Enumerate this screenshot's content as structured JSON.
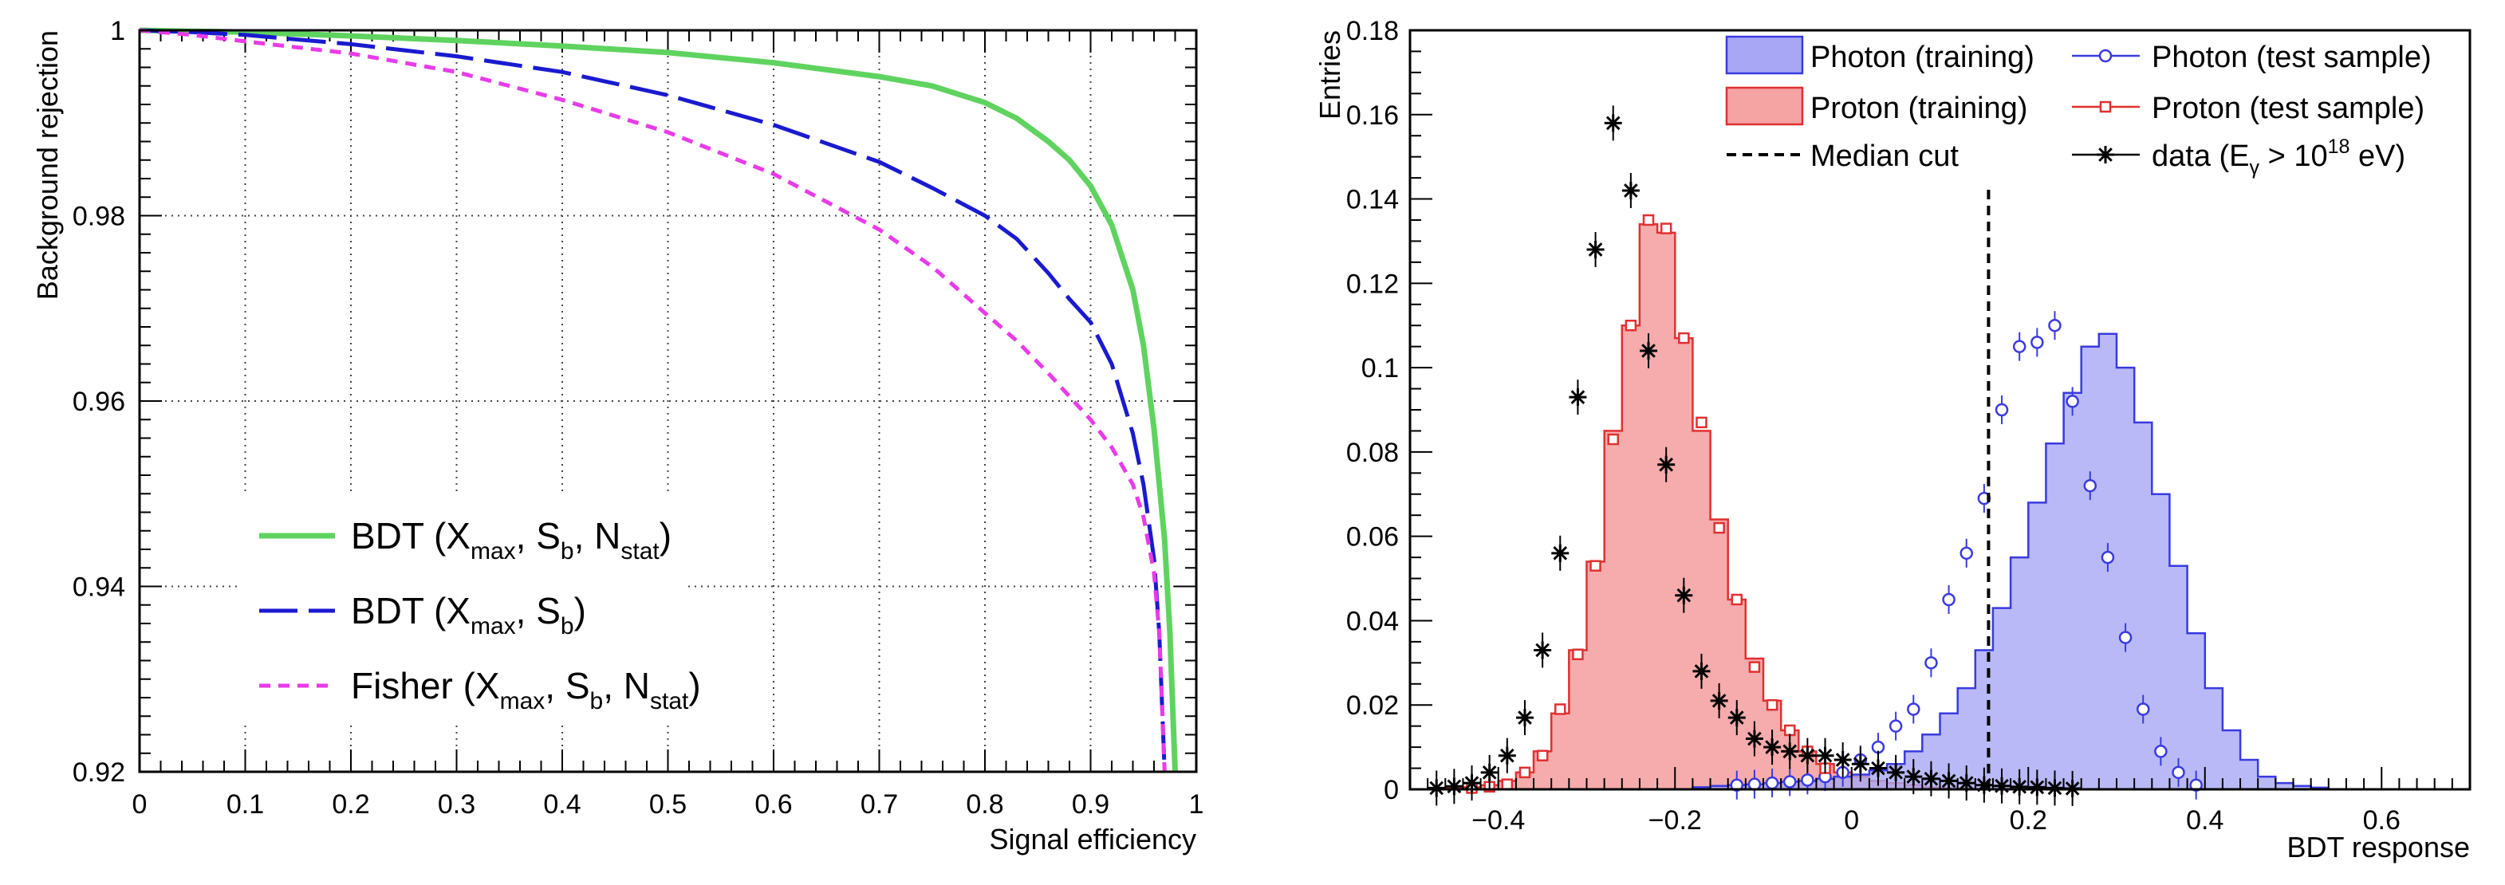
{
  "chart_data": [
    {
      "type": "line",
      "title": "",
      "xlabel": "Signal efficiency",
      "ylabel": "Background rejection",
      "xlim": [
        0,
        1
      ],
      "ylim": [
        0.92,
        1.0
      ],
      "x_ticks": [
        0,
        0.1,
        0.2,
        0.3,
        0.4,
        0.5,
        0.6,
        0.7,
        0.8,
        0.9,
        1
      ],
      "x_tick_labels": [
        "0",
        "0.1",
        "0.2",
        "0.3",
        "0.4",
        "0.5",
        "0.6",
        "0.7",
        "0.8",
        "0.9",
        "1"
      ],
      "y_ticks": [
        0.92,
        0.94,
        0.96,
        0.98,
        1.0
      ],
      "y_tick_labels": [
        "0.92",
        "0.94",
        "0.96",
        "0.98",
        "1"
      ],
      "grid": true,
      "legend_position": "bottom-left",
      "series": [
        {
          "name": "BDT (Xmax, Sb, Nstat)",
          "legend": {
            "prefix": "BDT (X",
            "sub1": "max",
            "mid1": ", S",
            "sub2": "b",
            "mid2": ", N",
            "sub3": "stat",
            "suffix": ")"
          },
          "color": "#5fd35f",
          "dash": "solid",
          "x": [
            0,
            0.05,
            0.1,
            0.2,
            0.3,
            0.4,
            0.5,
            0.6,
            0.7,
            0.75,
            0.8,
            0.83,
            0.86,
            0.88,
            0.9,
            0.92,
            0.94,
            0.95,
            0.96,
            0.97,
            0.975,
            0.98
          ],
          "y": [
            1.0,
            0.9999,
            0.9998,
            0.9994,
            0.9989,
            0.9983,
            0.9976,
            0.9965,
            0.995,
            0.994,
            0.9922,
            0.9905,
            0.988,
            0.986,
            0.9832,
            0.979,
            0.972,
            0.966,
            0.957,
            0.945,
            0.935,
            0.92
          ]
        },
        {
          "name": "BDT (Xmax, Sb)",
          "legend": {
            "prefix": "BDT (X",
            "sub1": "max",
            "mid1": ", S",
            "sub2": "b",
            "suffix": ")"
          },
          "color": "#1a1ad0",
          "dash": "long",
          "x": [
            0,
            0.05,
            0.1,
            0.2,
            0.3,
            0.4,
            0.5,
            0.6,
            0.7,
            0.75,
            0.8,
            0.83,
            0.86,
            0.88,
            0.9,
            0.92,
            0.94,
            0.95,
            0.96,
            0.965,
            0.97
          ],
          "y": [
            1.0,
            0.9998,
            0.9995,
            0.9985,
            0.9972,
            0.9955,
            0.993,
            0.9898,
            0.9858,
            0.983,
            0.98,
            0.9775,
            0.9738,
            0.971,
            0.9685,
            0.964,
            0.9565,
            0.951,
            0.943,
            0.935,
            0.92
          ]
        },
        {
          "name": "Fisher (Xmax, Sb, Nstat)",
          "legend": {
            "prefix": "Fisher (X",
            "sub1": "max",
            "mid1": ", S",
            "sub2": "b",
            "mid2": ", N",
            "sub3": "stat",
            "suffix": ")"
          },
          "color": "#e83be8",
          "dash": "short",
          "x": [
            0,
            0.05,
            0.1,
            0.2,
            0.3,
            0.4,
            0.5,
            0.6,
            0.7,
            0.75,
            0.8,
            0.83,
            0.86,
            0.88,
            0.9,
            0.92,
            0.94,
            0.95,
            0.96,
            0.965,
            0.97
          ],
          "y": [
            1.0,
            0.9995,
            0.9988,
            0.9975,
            0.9955,
            0.9925,
            0.989,
            0.9845,
            0.9785,
            0.9745,
            0.9695,
            0.9665,
            0.963,
            0.9605,
            0.958,
            0.955,
            0.951,
            0.9475,
            0.9415,
            0.935,
            0.92
          ]
        }
      ]
    },
    {
      "type": "bar",
      "title": "",
      "xlabel": "BDT response",
      "ylabel": "Entries",
      "xlim": [
        -0.5,
        0.7
      ],
      "ylim": [
        0,
        0.18
      ],
      "x_ticks": [
        -0.4,
        -0.2,
        0,
        0.2,
        0.4,
        0.6
      ],
      "x_tick_labels": [
        "−0.4",
        "−0.2",
        "0",
        "0.2",
        "0.4",
        "0.6"
      ],
      "y_ticks": [
        0,
        0.02,
        0.04,
        0.06,
        0.08,
        0.1,
        0.12,
        0.14,
        0.16,
        0.18
      ],
      "y_tick_labels": [
        "0",
        "0.02",
        "0.04",
        "0.06",
        "0.08",
        "0.1",
        "0.12",
        "0.14",
        "0.16",
        "0.18"
      ],
      "grid": false,
      "legend_position": "top-right",
      "bin_edges_start": -0.5,
      "bin_width": 0.02,
      "median_cut": 0.155,
      "series": [
        {
          "name": "Photon (training)",
          "kind": "filled-histogram",
          "color": "#3a3ae0",
          "fill": "#a7a7f5",
          "values": [
            0,
            0,
            0,
            0,
            0,
            0,
            0,
            0,
            0,
            0,
            0,
            0,
            0,
            0,
            0,
            0,
            0.0005,
            0.0008,
            0.001,
            0.0012,
            0.0015,
            0.0018,
            0.002,
            0.0025,
            0.003,
            0.0035,
            0.0045,
            0.006,
            0.009,
            0.013,
            0.018,
            0.024,
            0.033,
            0.043,
            0.055,
            0.068,
            0.082,
            0.094,
            0.105,
            0.108,
            0.1,
            0.087,
            0.07,
            0.053,
            0.037,
            0.024,
            0.014,
            0.007,
            0.003,
            0.0015,
            0.0008,
            0.0004,
            0,
            0,
            0,
            0,
            0,
            0,
            0,
            0
          ]
        },
        {
          "name": "Proton (training)",
          "kind": "filled-histogram",
          "color": "#e03030",
          "fill": "#f5a3a3",
          "values": [
            0,
            0,
            0.0003,
            0.0005,
            0.001,
            0.002,
            0.004,
            0.009,
            0.018,
            0.033,
            0.054,
            0.085,
            0.11,
            0.134,
            0.132,
            0.107,
            0.085,
            0.064,
            0.045,
            0.031,
            0.021,
            0.014,
            0.009,
            0.006,
            0.004,
            0.003,
            0.002,
            0.0015,
            0.001,
            0.0005,
            0.0003,
            0.0002,
            0,
            0,
            0,
            0,
            0,
            0,
            0,
            0,
            0,
            0,
            0,
            0,
            0,
            0,
            0,
            0,
            0,
            0,
            0,
            0,
            0,
            0,
            0,
            0,
            0,
            0,
            0,
            0
          ]
        },
        {
          "name": "Photon (test sample)",
          "kind": "markers-circle",
          "color": "#3a3ae0",
          "x": [
            -0.13,
            -0.11,
            -0.09,
            -0.07,
            -0.05,
            -0.03,
            -0.01,
            0.01,
            0.03,
            0.05,
            0.07,
            0.09,
            0.11,
            0.13,
            0.15,
            0.17,
            0.19,
            0.21,
            0.23,
            0.25,
            0.27,
            0.29,
            0.31,
            0.33,
            0.35,
            0.37,
            0.39
          ],
          "y": [
            0.001,
            0.0012,
            0.0015,
            0.0018,
            0.0022,
            0.003,
            0.004,
            0.007,
            0.01,
            0.015,
            0.019,
            0.03,
            0.045,
            0.056,
            0.069,
            0.09,
            0.105,
            0.106,
            0.11,
            0.092,
            0.072,
            0.055,
            0.036,
            0.019,
            0.009,
            0.004,
            0.001
          ]
        },
        {
          "name": "Proton (test sample)",
          "kind": "markers-square",
          "color": "#e03030",
          "x": [
            -0.43,
            -0.41,
            -0.39,
            -0.37,
            -0.35,
            -0.33,
            -0.31,
            -0.29,
            -0.27,
            -0.25,
            -0.23,
            -0.21,
            -0.19,
            -0.17,
            -0.15,
            -0.13,
            -0.11,
            -0.09,
            -0.07,
            -0.05,
            -0.03
          ],
          "y": [
            0.0003,
            0.0006,
            0.0012,
            0.004,
            0.008,
            0.019,
            0.032,
            0.053,
            0.083,
            0.11,
            0.135,
            0.133,
            0.107,
            0.087,
            0.062,
            0.045,
            0.029,
            0.02,
            0.014,
            0.009,
            0.005
          ]
        },
        {
          "name": "data (Eγ > 10^18 eV)",
          "legend": {
            "prefix": "data (E",
            "sub1": "γ",
            "mid1": " > 10",
            "sup1": "18",
            "suffix": " eV)"
          },
          "kind": "markers-star",
          "color": "#000000",
          "x": [
            -0.47,
            -0.45,
            -0.43,
            -0.41,
            -0.39,
            -0.37,
            -0.35,
            -0.33,
            -0.31,
            -0.29,
            -0.27,
            -0.25,
            -0.23,
            -0.21,
            -0.19,
            -0.17,
            -0.15,
            -0.13,
            -0.11,
            -0.09,
            -0.07,
            -0.05,
            -0.03,
            -0.01,
            0.01,
            0.03,
            0.05,
            0.07,
            0.09,
            0.11,
            0.13,
            0.15,
            0.17,
            0.19,
            0.21,
            0.23,
            0.25
          ],
          "y": [
            0.0003,
            0.0007,
            0.0015,
            0.004,
            0.008,
            0.017,
            0.033,
            0.056,
            0.093,
            0.128,
            0.158,
            0.142,
            0.104,
            0.077,
            0.046,
            0.028,
            0.021,
            0.017,
            0.012,
            0.01,
            0.009,
            0.008,
            0.008,
            0.007,
            0.006,
            0.005,
            0.004,
            0.003,
            0.0025,
            0.002,
            0.0015,
            0.001,
            0.0008,
            0.0006,
            0.0005,
            0.0003,
            0.0002
          ]
        }
      ],
      "legend_extra": {
        "median_cut_label": "Median cut"
      }
    }
  ]
}
